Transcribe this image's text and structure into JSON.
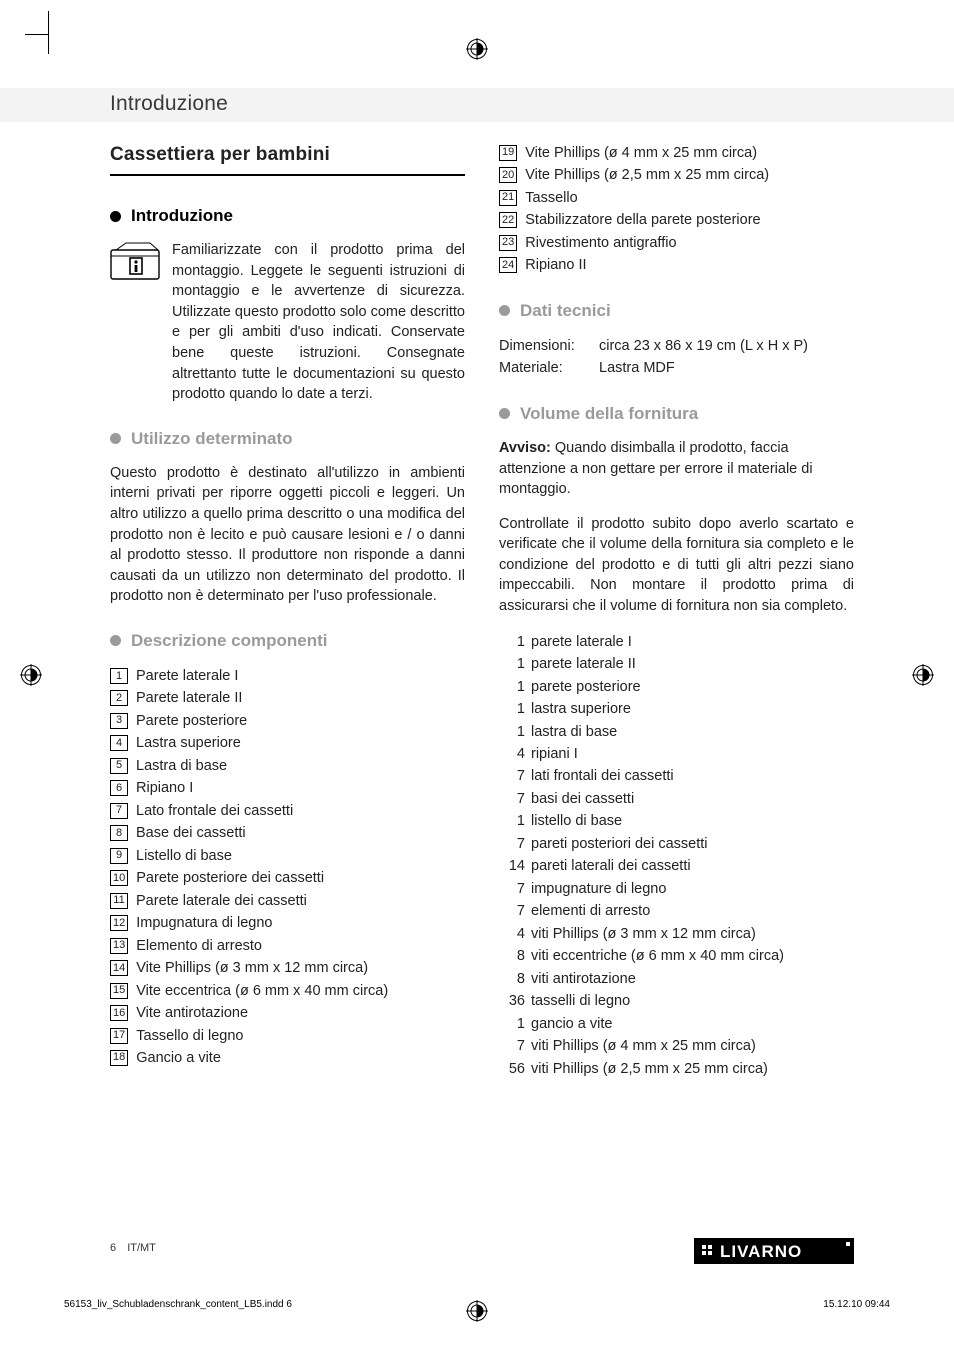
{
  "running_head": "Introduzione",
  "title": "Cassettiera per bambini",
  "sections": {
    "intro": {
      "heading": "Introduzione",
      "text": "Familiarizzate con il prodotto prima del montaggio. Leggete le seguenti istruzioni di montaggio e le avvertenze di sicurezza. Utilizzate questo prodotto solo come descritto e per gli ambiti d'uso indicati. Conservate bene queste istruzioni. Consegnate altrettanto tutte le documentazioni su questo prodotto quando lo date a terzi."
    },
    "use": {
      "heading": "Utilizzo determinato",
      "text": "Questo prodotto è destinato all'utilizzo in ambienti interni privati per riporre oggetti piccoli e leggeri. Un altro utilizzo a quello prima descritto o una modifica del prodotto non è lecito e può causare lesioni e / o danni al prodotto stesso. Il produttore non risponde a danni causati da un utilizzo non determinato del prodotto. Il prodotto non è determinato per l'uso professionale."
    },
    "components": {
      "heading": "Descrizione componenti",
      "items": [
        {
          "n": "1",
          "t": "Parete laterale I"
        },
        {
          "n": "2",
          "t": "Parete laterale II"
        },
        {
          "n": "3",
          "t": "Parete posteriore"
        },
        {
          "n": "4",
          "t": "Lastra superiore"
        },
        {
          "n": "5",
          "t": "Lastra di base"
        },
        {
          "n": "6",
          "t": "Ripiano I"
        },
        {
          "n": "7",
          "t": "Lato frontale dei cassetti"
        },
        {
          "n": "8",
          "t": "Base dei cassetti"
        },
        {
          "n": "9",
          "t": "Listello di base"
        },
        {
          "n": "10",
          "t": "Parete posteriore dei cassetti"
        },
        {
          "n": "11",
          "t": "Parete laterale dei cassetti"
        },
        {
          "n": "12",
          "t": "Impugnatura di legno"
        },
        {
          "n": "13",
          "t": "Elemento di arresto"
        },
        {
          "n": "14",
          "t": "Vite Phillips (ø 3 mm x 12 mm circa)"
        },
        {
          "n": "15",
          "t": "Vite eccentrica (ø 6 mm x 40 mm circa)"
        },
        {
          "n": "16",
          "t": "Vite antirotazione"
        },
        {
          "n": "17",
          "t": "Tassello di legno"
        },
        {
          "n": "18",
          "t": "Gancio a vite"
        }
      ]
    },
    "components2": [
      {
        "n": "19",
        "t": "Vite Phillips (ø 4 mm x 25 mm circa)"
      },
      {
        "n": "20",
        "t": "Vite Phillips (ø 2,5 mm x 25 mm circa)"
      },
      {
        "n": "21",
        "t": "Tassello"
      },
      {
        "n": "22",
        "t": "Stabilizzatore della parete posteriore"
      },
      {
        "n": "23",
        "t": "Rivestimento antigraffio"
      },
      {
        "n": "24",
        "t": "Ripiano II"
      }
    ],
    "specs": {
      "heading": "Dati tecnici",
      "rows": [
        {
          "k": "Dimensioni:",
          "v": "circa 23 x 86 x 19 cm (L x H x P)"
        },
        {
          "k": "Materiale:",
          "v": "Lastra MDF"
        }
      ]
    },
    "supply": {
      "heading": "Volume della fornitura",
      "note_label": "Avviso:",
      "note": " Quando disimballa il prodotto, faccia attenzione a non gettare per errore il materiale di montaggio.",
      "para": "Controllate il prodotto subito dopo averlo scartato e verificate che il volume della fornitura sia completo e le condizione del prodotto e di tutti gli altri pezzi siano impeccabili. Non montare il prodotto prima di assicurarsi che il volume di fornitura non sia completo.",
      "items": [
        {
          "q": "1",
          "t": "parete laterale I"
        },
        {
          "q": "1",
          "t": "parete laterale II"
        },
        {
          "q": "1",
          "t": "parete posteriore"
        },
        {
          "q": "1",
          "t": "lastra superiore"
        },
        {
          "q": "1",
          "t": "lastra di base"
        },
        {
          "q": "4",
          "t": "ripiani I"
        },
        {
          "q": "7",
          "t": "lati frontali dei cassetti"
        },
        {
          "q": "7",
          "t": "basi dei cassetti"
        },
        {
          "q": "1",
          "t": "listello di base"
        },
        {
          "q": "7",
          "t": "pareti posteriori dei cassetti"
        },
        {
          "q": "14",
          "t": "pareti laterali dei cassetti"
        },
        {
          "q": "7",
          "t": "impugnature di legno"
        },
        {
          "q": "7",
          "t": "elementi di arresto"
        },
        {
          "q": "4",
          "t": "viti Phillips (ø 3 mm x 12 mm circa)"
        },
        {
          "q": "8",
          "t": "viti eccentriche (ø 6 mm x 40 mm circa)"
        },
        {
          "q": "8",
          "t": "viti antirotazione"
        },
        {
          "q": "36",
          "t": "tasselli di legno"
        },
        {
          "q": "1",
          "t": "gancio a vite"
        },
        {
          "q": "7",
          "t": "viti Phillips (ø 4 mm x 25 mm circa)"
        },
        {
          "q": "56",
          "t": "viti Phillips (ø 2,5 mm x 25 mm circa)"
        }
      ]
    }
  },
  "footer": {
    "page": "6",
    "lang": "IT/MT"
  },
  "logo_text": "LIVARNO",
  "slug": {
    "file": "56153_liv_Schubladenschrank_content_LB5.indd   6",
    "date": "15.12.10   09:44"
  },
  "colors": {
    "grey_heading": "#9a9a9a",
    "band": "#f3f3f3",
    "logo_bg": "#000000",
    "logo_fg": "#ffffff"
  }
}
